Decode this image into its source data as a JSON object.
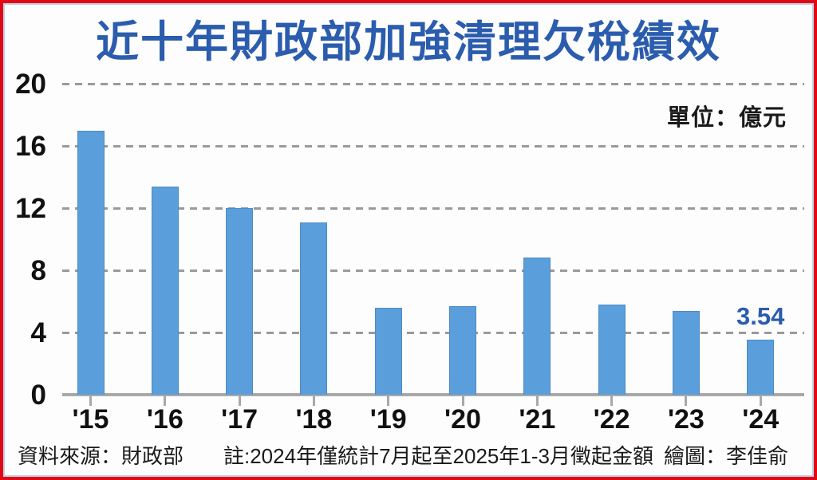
{
  "title": "近十年財政部加強清理欠稅績效",
  "unit_label": "單位：億元",
  "footer": {
    "source": "資料來源：財政部",
    "note": "註:2024年僅統計7月起至2025年1-3月徵起金額",
    "credit": "繪圖：李佳俞"
  },
  "colors": {
    "bar": "#5a9fdb",
    "bar_edge": "#4e8bc4",
    "accent_blue": "#2b5cad",
    "frame_red": "#e30613",
    "frame_inner_blue": "#b9d3e6",
    "grid_gray": "#9a9a9a",
    "axis_gray": "#a8a8a8",
    "text_black": "#1a1a1a"
  },
  "chart_data": {
    "type": "bar",
    "title": "近十年財政部加強清理欠稅績效",
    "unit": "單位：億元",
    "categories": [
      "'15",
      "'16",
      "'17",
      "'18",
      "'19",
      "'20",
      "'21",
      "'22",
      "'23",
      "'24"
    ],
    "values": [
      17.0,
      13.4,
      12.0,
      11.1,
      5.6,
      5.7,
      8.8,
      5.8,
      5.4,
      3.54
    ],
    "ylim": [
      0,
      20
    ],
    "yticks": [
      0,
      4,
      8,
      12,
      16,
      20
    ],
    "grid": "horizontal-dashed",
    "legend": "none",
    "annotations": [
      {
        "text": "3.54",
        "category": "'24"
      }
    ]
  }
}
